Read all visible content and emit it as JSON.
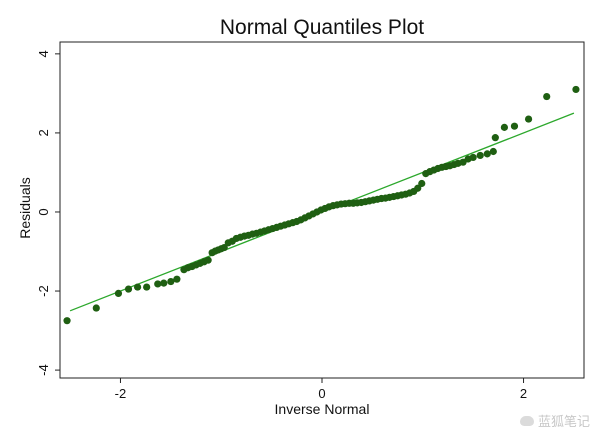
{
  "chart_data": {
    "type": "scatter",
    "title": "Normal Quantiles Plot",
    "xlabel": "Inverse Normal",
    "ylabel": "Residuals",
    "xlim": [
      -2.6,
      2.6
    ],
    "ylim": [
      -4.2,
      4.3
    ],
    "xticks": [
      -2,
      0,
      2
    ],
    "yticks": [
      -4,
      -2,
      0,
      2,
      4
    ],
    "grid": false,
    "legend": "none",
    "colors": {
      "points": "#1f5f12",
      "line": "#2ca82c"
    },
    "reference_line": {
      "slope": 1.0,
      "intercept": 0.0
    },
    "series": [
      {
        "name": "",
        "points": [
          [
            -2.53,
            -2.75
          ],
          [
            -2.24,
            -2.43
          ],
          [
            -2.02,
            -2.06
          ],
          [
            -1.92,
            -1.95
          ],
          [
            -1.83,
            -1.9
          ],
          [
            -1.74,
            -1.9
          ],
          [
            -1.63,
            -1.82
          ],
          [
            -1.57,
            -1.8
          ],
          [
            -1.5,
            -1.76
          ],
          [
            -1.44,
            -1.7
          ],
          [
            -1.37,
            -1.46
          ],
          [
            -1.33,
            -1.41
          ],
          [
            -1.29,
            -1.38
          ],
          [
            -1.25,
            -1.34
          ],
          [
            -1.21,
            -1.3
          ],
          [
            -1.17,
            -1.26
          ],
          [
            -1.13,
            -1.22
          ],
          [
            -1.09,
            -1.03
          ],
          [
            -1.06,
            -0.99
          ],
          [
            -1.03,
            -0.96
          ],
          [
            -1.0,
            -0.93
          ],
          [
            -0.97,
            -0.9
          ],
          [
            -0.93,
            -0.78
          ],
          [
            -0.89,
            -0.74
          ],
          [
            -0.85,
            -0.67
          ],
          [
            -0.81,
            -0.64
          ],
          [
            -0.77,
            -0.61
          ],
          [
            -0.73,
            -0.59
          ],
          [
            -0.69,
            -0.56
          ],
          [
            -0.65,
            -0.54
          ],
          [
            -0.61,
            -0.51
          ],
          [
            -0.57,
            -0.48
          ],
          [
            -0.53,
            -0.45
          ],
          [
            -0.49,
            -0.42
          ],
          [
            -0.45,
            -0.39
          ],
          [
            -0.41,
            -0.36
          ],
          [
            -0.37,
            -0.33
          ],
          [
            -0.33,
            -0.3
          ],
          [
            -0.29,
            -0.27
          ],
          [
            -0.25,
            -0.24
          ],
          [
            -0.21,
            -0.2
          ],
          [
            -0.17,
            -0.15
          ],
          [
            -0.13,
            -0.1
          ],
          [
            -0.09,
            -0.05
          ],
          [
            -0.05,
            0.0
          ],
          [
            -0.01,
            0.05
          ],
          [
            0.03,
            0.09
          ],
          [
            0.07,
            0.13
          ],
          [
            0.11,
            0.16
          ],
          [
            0.15,
            0.18
          ],
          [
            0.19,
            0.2
          ],
          [
            0.23,
            0.21
          ],
          [
            0.27,
            0.22
          ],
          [
            0.31,
            0.22
          ],
          [
            0.35,
            0.23
          ],
          [
            0.39,
            0.24
          ],
          [
            0.43,
            0.26
          ],
          [
            0.47,
            0.28
          ],
          [
            0.51,
            0.3
          ],
          [
            0.55,
            0.32
          ],
          [
            0.59,
            0.34
          ],
          [
            0.63,
            0.35
          ],
          [
            0.67,
            0.37
          ],
          [
            0.71,
            0.39
          ],
          [
            0.75,
            0.41
          ],
          [
            0.79,
            0.43
          ],
          [
            0.83,
            0.45
          ],
          [
            0.87,
            0.48
          ],
          [
            0.91,
            0.52
          ],
          [
            0.95,
            0.6
          ],
          [
            0.99,
            0.72
          ],
          [
            1.03,
            0.97
          ],
          [
            1.07,
            1.02
          ],
          [
            1.11,
            1.06
          ],
          [
            1.15,
            1.1
          ],
          [
            1.19,
            1.13
          ],
          [
            1.23,
            1.15
          ],
          [
            1.27,
            1.17
          ],
          [
            1.31,
            1.2
          ],
          [
            1.35,
            1.23
          ],
          [
            1.4,
            1.26
          ],
          [
            1.45,
            1.34
          ],
          [
            1.5,
            1.38
          ],
          [
            1.57,
            1.43
          ],
          [
            1.64,
            1.47
          ],
          [
            1.7,
            1.53
          ],
          [
            1.72,
            1.88
          ],
          [
            1.81,
            2.14
          ],
          [
            1.91,
            2.17
          ],
          [
            2.05,
            2.35
          ],
          [
            2.23,
            2.92
          ],
          [
            2.52,
            3.1
          ]
        ]
      }
    ]
  },
  "watermark": {
    "text": "蓝狐笔记"
  }
}
